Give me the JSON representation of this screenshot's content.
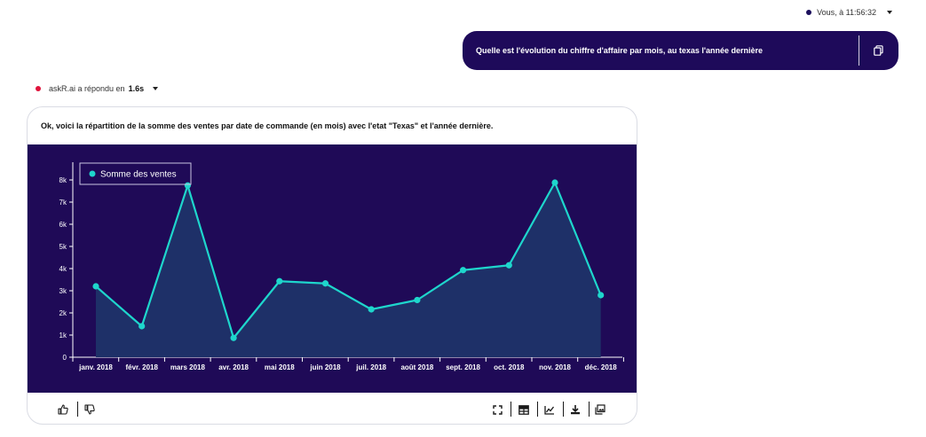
{
  "user_message": {
    "meta": "Vous, à 11:56:32",
    "text": "Quelle est l'évolution du chiffre d'affaire par mois, au texas l'année dernière"
  },
  "bot_message": {
    "meta_prefix": "askR.ai a répondu en",
    "duration": "1.6s",
    "text": "Ok, voici la répartition de la somme des ventes par date de commande (en mois) avec l'etat \"Texas\" et l'année dernière."
  },
  "colors": {
    "chart_bg": "#1f0a57",
    "line": "#1ed6cc",
    "area": "#1e3068",
    "axis": "#ffffff",
    "bubble": "#1e0a5a"
  },
  "chart_data": {
    "type": "area",
    "title": "",
    "xlabel": "",
    "ylabel": "",
    "categories": [
      "janv. 2018",
      "févr. 2018",
      "mars 2018",
      "avr. 2018",
      "mai 2018",
      "juin 2018",
      "juil. 2018",
      "août 2018",
      "sept. 2018",
      "oct. 2018",
      "nov. 2018",
      "déc. 2018"
    ],
    "series": [
      {
        "name": "Somme des ventes",
        "values": [
          3200,
          1400,
          7750,
          870,
          3430,
          3330,
          2160,
          2580,
          3930,
          4150,
          7880,
          2800
        ]
      }
    ],
    "ylim": [
      0,
      8800
    ],
    "yticks": [
      0,
      1000,
      2000,
      3000,
      4000,
      5000,
      6000,
      7000,
      8000
    ],
    "ytick_labels": [
      "0",
      "1k",
      "2k",
      "3k",
      "4k",
      "5k",
      "6k",
      "7k",
      "8k"
    ],
    "grid": false,
    "legend_position": "top-left"
  },
  "footer": {
    "left_icons": [
      "thumbs-up-icon",
      "thumbs-down-icon"
    ],
    "right_icons": [
      "fullscreen-icon",
      "table-icon",
      "chart-icon",
      "download-icon",
      "gallery-icon"
    ]
  }
}
